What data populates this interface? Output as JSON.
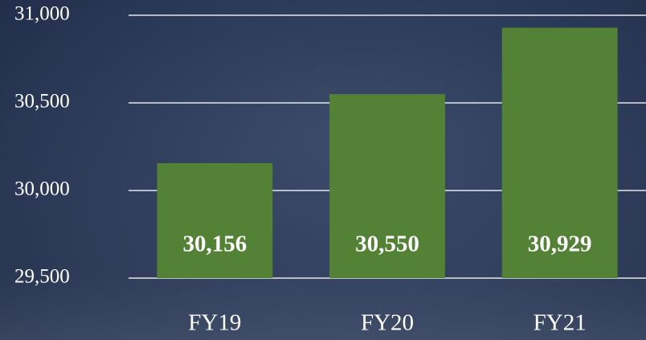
{
  "chart_data": {
    "type": "bar",
    "categories": [
      "FY19",
      "FY20",
      "FY21"
    ],
    "values": [
      30156,
      30550,
      30929
    ],
    "value_labels": [
      "30,156",
      "30,550",
      "30,929"
    ],
    "color": "#538135",
    "ylim": [
      29500,
      31000
    ],
    "yticks": [
      {
        "value": 29500,
        "label": "29,500"
      },
      {
        "value": 30000,
        "label": "30,000"
      },
      {
        "value": 30500,
        "label": "30,500"
      },
      {
        "value": 31000,
        "label": "31,000"
      }
    ],
    "grid": true
  }
}
